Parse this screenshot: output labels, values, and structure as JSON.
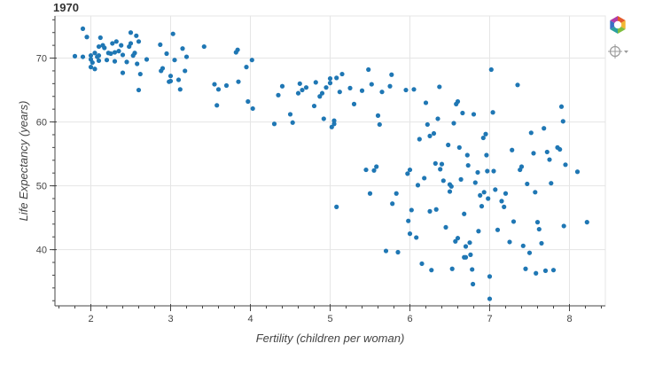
{
  "chart_data": {
    "type": "scatter",
    "title": "1970",
    "xlabel": "Fertility (children per woman)",
    "ylabel": "Life Expectancy (years)",
    "xlim": [
      1.55,
      8.45
    ],
    "ylim": [
      31.2,
      76.6
    ],
    "xticks": [
      2,
      3,
      4,
      5,
      6,
      7,
      8
    ],
    "yticks": [
      40,
      50,
      60,
      70
    ],
    "grid": true,
    "point_color": "#1f77b4",
    "series": [
      {
        "points": [
          [
            1.8,
            70.3
          ],
          [
            1.9,
            74.6
          ],
          [
            1.9,
            70.2
          ],
          [
            1.95,
            73.3
          ],
          [
            2.0,
            70.4
          ],
          [
            2.0,
            69.8
          ],
          [
            2.0,
            68.6
          ],
          [
            2.02,
            69.3
          ],
          [
            2.05,
            70.8
          ],
          [
            2.05,
            68.3
          ],
          [
            2.08,
            70.2
          ],
          [
            2.1,
            71.8
          ],
          [
            2.1,
            69.6
          ],
          [
            2.1,
            70.4
          ],
          [
            2.12,
            73.2
          ],
          [
            2.15,
            72.0
          ],
          [
            2.17,
            71.6
          ],
          [
            2.2,
            69.7
          ],
          [
            2.22,
            70.8
          ],
          [
            2.25,
            70.7
          ],
          [
            2.27,
            72.3
          ],
          [
            2.3,
            69.5
          ],
          [
            2.3,
            70.9
          ],
          [
            2.32,
            72.6
          ],
          [
            2.35,
            71.1
          ],
          [
            2.38,
            72.0
          ],
          [
            2.4,
            70.5
          ],
          [
            2.4,
            67.7
          ],
          [
            2.45,
            69.4
          ],
          [
            2.48,
            71.8
          ],
          [
            2.5,
            72.3
          ],
          [
            2.5,
            74.0
          ],
          [
            2.53,
            70.4
          ],
          [
            2.55,
            70.8
          ],
          [
            2.57,
            73.5
          ],
          [
            2.58,
            69.1
          ],
          [
            2.6,
            72.6
          ],
          [
            2.6,
            65.0
          ],
          [
            2.62,
            67.5
          ],
          [
            2.7,
            69.8
          ],
          [
            2.87,
            72.1
          ],
          [
            2.88,
            68.0
          ],
          [
            2.9,
            68.4
          ],
          [
            2.95,
            70.7
          ],
          [
            2.98,
            66.3
          ],
          [
            3.0,
            67.2
          ],
          [
            3.0,
            66.4
          ],
          [
            3.03,
            73.8
          ],
          [
            3.05,
            69.7
          ],
          [
            3.1,
            66.6
          ],
          [
            3.12,
            65.1
          ],
          [
            3.15,
            71.5
          ],
          [
            3.18,
            68.0
          ],
          [
            3.2,
            70.2
          ],
          [
            3.42,
            71.8
          ],
          [
            3.55,
            65.9
          ],
          [
            3.58,
            62.6
          ],
          [
            3.6,
            65.1
          ],
          [
            3.7,
            65.7
          ],
          [
            3.82,
            70.9
          ],
          [
            3.84,
            71.3
          ],
          [
            3.85,
            66.3
          ],
          [
            3.95,
            68.6
          ],
          [
            3.97,
            63.2
          ],
          [
            4.02,
            69.7
          ],
          [
            4.03,
            62.1
          ],
          [
            4.3,
            59.7
          ],
          [
            4.35,
            64.2
          ],
          [
            4.4,
            65.6
          ],
          [
            4.5,
            61.2
          ],
          [
            4.53,
            59.9
          ],
          [
            4.6,
            64.5
          ],
          [
            4.62,
            66.0
          ],
          [
            4.65,
            65.0
          ],
          [
            4.7,
            65.4
          ],
          [
            4.8,
            62.5
          ],
          [
            4.82,
            66.2
          ],
          [
            4.87,
            64.0
          ],
          [
            4.9,
            64.5
          ],
          [
            4.92,
            60.5
          ],
          [
            4.95,
            65.4
          ],
          [
            5.0,
            66.1
          ],
          [
            5.0,
            66.8
          ],
          [
            5.02,
            59.2
          ],
          [
            5.05,
            59.7
          ],
          [
            5.05,
            60.2
          ],
          [
            5.08,
            66.9
          ],
          [
            5.08,
            46.7
          ],
          [
            5.12,
            64.7
          ],
          [
            5.15,
            67.5
          ],
          [
            5.25,
            65.3
          ],
          [
            5.3,
            62.8
          ],
          [
            5.4,
            64.9
          ],
          [
            5.45,
            52.5
          ],
          [
            5.48,
            68.2
          ],
          [
            5.5,
            48.8
          ],
          [
            5.52,
            65.9
          ],
          [
            5.55,
            52.4
          ],
          [
            5.58,
            53.0
          ],
          [
            5.6,
            61.0
          ],
          [
            5.62,
            59.6
          ],
          [
            5.65,
            64.7
          ],
          [
            5.7,
            39.8
          ],
          [
            5.75,
            65.6
          ],
          [
            5.77,
            67.4
          ],
          [
            5.78,
            47.2
          ],
          [
            5.83,
            48.8
          ],
          [
            5.85,
            39.6
          ],
          [
            5.95,
            65.0
          ],
          [
            5.97,
            51.9
          ],
          [
            5.98,
            44.5
          ],
          [
            6.0,
            42.5
          ],
          [
            6.0,
            52.5
          ],
          [
            6.02,
            46.2
          ],
          [
            6.05,
            65.1
          ],
          [
            6.08,
            41.9
          ],
          [
            6.1,
            50.1
          ],
          [
            6.12,
            57.3
          ],
          [
            6.15,
            37.8
          ],
          [
            6.18,
            51.2
          ],
          [
            6.2,
            63.0
          ],
          [
            6.22,
            59.6
          ],
          [
            6.25,
            57.8
          ],
          [
            6.25,
            46.0
          ],
          [
            6.27,
            36.8
          ],
          [
            6.3,
            58.2
          ],
          [
            6.32,
            53.5
          ],
          [
            6.33,
            46.3
          ],
          [
            6.35,
            60.5
          ],
          [
            6.37,
            65.5
          ],
          [
            6.38,
            52.6
          ],
          [
            6.4,
            53.4
          ],
          [
            6.42,
            50.8
          ],
          [
            6.45,
            43.5
          ],
          [
            6.48,
            56.4
          ],
          [
            6.5,
            49.1
          ],
          [
            6.5,
            50.2
          ],
          [
            6.52,
            49.9
          ],
          [
            6.53,
            37.0
          ],
          [
            6.55,
            59.8
          ],
          [
            6.57,
            41.3
          ],
          [
            6.58,
            62.8
          ],
          [
            6.6,
            63.2
          ],
          [
            6.6,
            41.8
          ],
          [
            6.62,
            56.0
          ],
          [
            6.64,
            51.0
          ],
          [
            6.66,
            61.4
          ],
          [
            6.68,
            45.6
          ],
          [
            6.68,
            38.8
          ],
          [
            6.7,
            40.5
          ],
          [
            6.7,
            38.8
          ],
          [
            6.72,
            54.8
          ],
          [
            6.73,
            53.2
          ],
          [
            6.75,
            41.1
          ],
          [
            6.76,
            39.2
          ],
          [
            6.78,
            36.9
          ],
          [
            6.79,
            34.6
          ],
          [
            6.8,
            61.2
          ],
          [
            6.82,
            50.5
          ],
          [
            6.85,
            52.1
          ],
          [
            6.86,
            42.9
          ],
          [
            6.88,
            48.5
          ],
          [
            6.9,
            46.8
          ],
          [
            6.92,
            57.5
          ],
          [
            6.93,
            49.0
          ],
          [
            6.95,
            58.1
          ],
          [
            6.96,
            54.8
          ],
          [
            6.97,
            52.3
          ],
          [
            6.98,
            48.0
          ],
          [
            7.0,
            35.8
          ],
          [
            7.0,
            32.3
          ],
          [
            7.02,
            68.2
          ],
          [
            7.04,
            61.5
          ],
          [
            7.05,
            52.3
          ],
          [
            7.07,
            49.4
          ],
          [
            7.1,
            43.1
          ],
          [
            7.15,
            47.6
          ],
          [
            7.18,
            46.7
          ],
          [
            7.2,
            48.8
          ],
          [
            7.25,
            41.2
          ],
          [
            7.28,
            55.6
          ],
          [
            7.3,
            44.4
          ],
          [
            7.35,
            65.8
          ],
          [
            7.38,
            52.5
          ],
          [
            7.4,
            53.0
          ],
          [
            7.42,
            40.6
          ],
          [
            7.45,
            37.0
          ],
          [
            7.47,
            50.3
          ],
          [
            7.5,
            39.5
          ],
          [
            7.52,
            58.3
          ],
          [
            7.55,
            55.1
          ],
          [
            7.57,
            49.0
          ],
          [
            7.58,
            36.3
          ],
          [
            7.6,
            44.3
          ],
          [
            7.62,
            43.2
          ],
          [
            7.65,
            41.0
          ],
          [
            7.68,
            59.0
          ],
          [
            7.7,
            36.7
          ],
          [
            7.72,
            55.3
          ],
          [
            7.75,
            54.1
          ],
          [
            7.77,
            50.4
          ],
          [
            7.8,
            36.8
          ],
          [
            7.85,
            56.0
          ],
          [
            7.88,
            55.7
          ],
          [
            7.9,
            62.4
          ],
          [
            7.92,
            60.1
          ],
          [
            7.93,
            43.7
          ],
          [
            7.95,
            53.3
          ],
          [
            8.1,
            52.2
          ],
          [
            8.22,
            44.3
          ]
        ]
      }
    ]
  },
  "toolbar": {
    "logo_icon": "bokeh-logo-icon",
    "tool_icon": "crosshair-hover-icon"
  }
}
